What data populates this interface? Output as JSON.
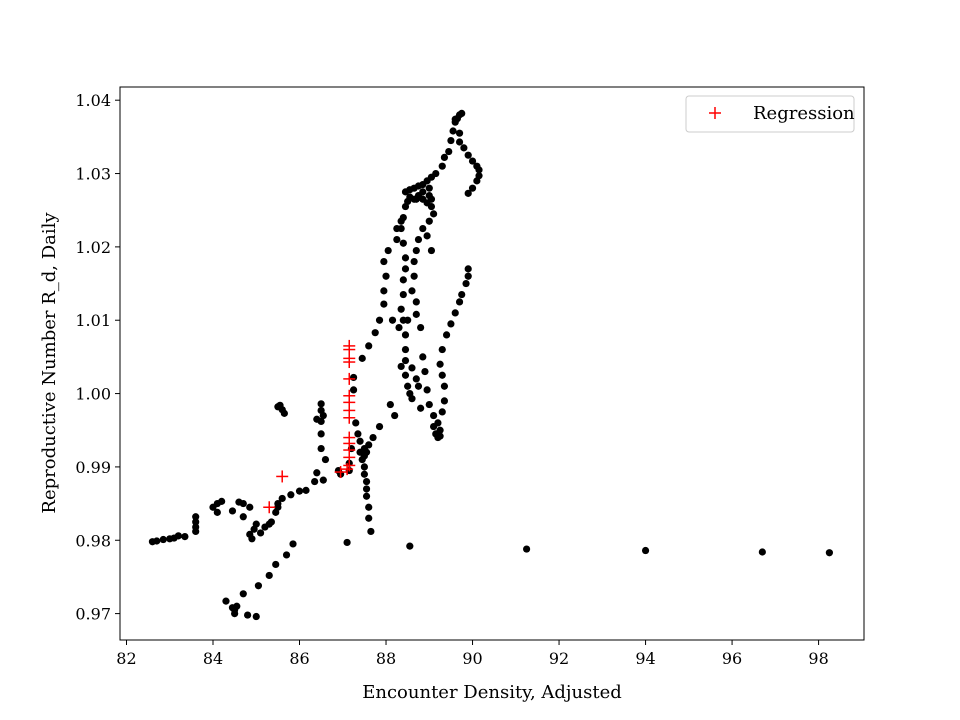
{
  "chart_data": {
    "type": "scatter",
    "title": "",
    "xlabel": "Encounter Density, Adjusted",
    "ylabel": "Reproductive Number R_d, Daily",
    "xlim": [
      81.85,
      99.05
    ],
    "ylim": [
      0.9664,
      1.0418
    ],
    "xticks": [
      82,
      84,
      86,
      88,
      90,
      92,
      94,
      96,
      98
    ],
    "yticks": [
      0.97,
      0.98,
      0.99,
      1.0,
      1.01,
      1.02,
      1.03,
      1.04
    ],
    "ytick_labels": [
      "0.97",
      "0.98",
      "0.99",
      "1.00",
      "1.01",
      "1.02",
      "1.03",
      "1.04"
    ],
    "grid": false,
    "legend": {
      "placement": "top-right",
      "entries": [
        "Regression"
      ]
    },
    "colors": {
      "observed": "#000000",
      "regression": "#ff0000"
    },
    "series": [
      {
        "marker": "dot",
        "points": [
          [
            82.6,
            0.9798
          ],
          [
            82.7,
            0.9799
          ],
          [
            82.85,
            0.9801
          ],
          [
            83.0,
            0.9802
          ],
          [
            83.1,
            0.9803
          ],
          [
            83.2,
            0.9806
          ],
          [
            83.35,
            0.9805
          ],
          [
            83.6,
            0.9812
          ],
          [
            83.6,
            0.9818
          ],
          [
            83.6,
            0.9825
          ],
          [
            83.6,
            0.9832
          ],
          [
            84.0,
            0.9845
          ],
          [
            84.1,
            0.985
          ],
          [
            84.2,
            0.9853
          ],
          [
            84.1,
            0.9838
          ],
          [
            84.45,
            0.984
          ],
          [
            84.6,
            0.9852
          ],
          [
            84.7,
            0.985
          ],
          [
            84.7,
            0.9832
          ],
          [
            84.85,
            0.9845
          ],
          [
            84.85,
            0.9808
          ],
          [
            84.9,
            0.9802
          ],
          [
            84.95,
            0.9815
          ],
          [
            85.0,
            0.9822
          ],
          [
            85.1,
            0.981
          ],
          [
            85.2,
            0.9818
          ],
          [
            85.3,
            0.9822
          ],
          [
            85.35,
            0.9825
          ],
          [
            85.45,
            0.9838
          ],
          [
            85.5,
            0.9845
          ],
          [
            85.5,
            0.985
          ],
          [
            85.6,
            0.9857
          ],
          [
            85.8,
            0.9862
          ],
          [
            86.0,
            0.9867
          ],
          [
            86.15,
            0.9868
          ],
          [
            86.35,
            0.988
          ],
          [
            86.55,
            0.9882
          ],
          [
            86.4,
            0.9892
          ],
          [
            86.6,
            0.991
          ],
          [
            86.5,
            0.9925
          ],
          [
            86.5,
            0.9945
          ],
          [
            86.5,
            0.9962
          ],
          [
            86.55,
            0.997
          ],
          [
            86.5,
            0.9977
          ],
          [
            86.5,
            0.9986
          ],
          [
            86.4,
            0.9965
          ],
          [
            86.9,
            0.9895
          ],
          [
            86.95,
            0.989
          ],
          [
            85.5,
            0.9982
          ],
          [
            85.55,
            0.9984
          ],
          [
            85.6,
            0.9978
          ],
          [
            85.65,
            0.9973
          ],
          [
            84.3,
            0.9717
          ],
          [
            84.45,
            0.9708
          ],
          [
            84.5,
            0.97
          ],
          [
            84.5,
            0.9705
          ],
          [
            84.55,
            0.971
          ],
          [
            84.7,
            0.9727
          ],
          [
            84.8,
            0.9698
          ],
          [
            85.0,
            0.9696
          ],
          [
            85.05,
            0.9738
          ],
          [
            85.3,
            0.9752
          ],
          [
            85.45,
            0.9767
          ],
          [
            85.7,
            0.978
          ],
          [
            85.85,
            0.9795
          ],
          [
            87.1,
            0.9797
          ],
          [
            88.55,
            0.9792
          ],
          [
            91.25,
            0.9788
          ],
          [
            94.0,
            0.9786
          ],
          [
            96.7,
            0.9784
          ],
          [
            98.25,
            0.9783
          ],
          [
            87.15,
            0.9895
          ],
          [
            87.15,
            0.9905
          ],
          [
            87.2,
            0.9925
          ],
          [
            87.3,
            0.996
          ],
          [
            87.25,
            1.0005
          ],
          [
            87.25,
            1.0022
          ],
          [
            87.45,
            1.0048
          ],
          [
            87.6,
            1.0065
          ],
          [
            87.75,
            1.0083
          ],
          [
            87.85,
            1.01
          ],
          [
            87.95,
            1.0122
          ],
          [
            87.95,
            1.014
          ],
          [
            88.0,
            1.016
          ],
          [
            87.95,
            1.018
          ],
          [
            88.05,
            1.0195
          ],
          [
            88.25,
            1.021
          ],
          [
            88.25,
            1.0225
          ],
          [
            88.35,
            1.0235
          ],
          [
            88.4,
            1.024
          ],
          [
            88.45,
            1.0255
          ],
          [
            88.5,
            1.0262
          ],
          [
            88.55,
            1.0268
          ],
          [
            88.65,
            1.0265
          ],
          [
            88.75,
            1.027
          ],
          [
            88.85,
            1.0265
          ],
          [
            88.95,
            1.026
          ],
          [
            89.0,
            1.027
          ],
          [
            88.45,
            1.0275
          ],
          [
            88.55,
            1.0278
          ],
          [
            88.65,
            1.028
          ],
          [
            88.75,
            1.0283
          ],
          [
            88.85,
            1.0285
          ],
          [
            88.95,
            1.029
          ],
          [
            89.05,
            1.0295
          ],
          [
            89.15,
            1.03
          ],
          [
            89.3,
            1.031
          ],
          [
            89.35,
            1.0322
          ],
          [
            89.45,
            1.033
          ],
          [
            89.5,
            1.0345
          ],
          [
            89.55,
            1.0358
          ],
          [
            89.6,
            1.037
          ],
          [
            89.65,
            1.0375
          ],
          [
            89.7,
            1.038
          ],
          [
            89.75,
            1.0382
          ],
          [
            89.6,
            1.0374
          ],
          [
            89.7,
            1.0355
          ],
          [
            89.7,
            1.0343
          ],
          [
            89.8,
            1.0335
          ],
          [
            89.9,
            1.0325
          ],
          [
            90.0,
            1.0317
          ],
          [
            90.1,
            1.031
          ],
          [
            90.15,
            1.0305
          ],
          [
            90.15,
            1.0297
          ],
          [
            90.1,
            1.029
          ],
          [
            90.0,
            1.028
          ],
          [
            89.9,
            1.0273
          ],
          [
            88.35,
            1.0225
          ],
          [
            88.4,
            1.0205
          ],
          [
            88.45,
            1.0185
          ],
          [
            88.45,
            1.017
          ],
          [
            88.4,
            1.0155
          ],
          [
            88.4,
            1.0135
          ],
          [
            88.35,
            1.0115
          ],
          [
            88.4,
            1.01
          ],
          [
            88.45,
            1.008
          ],
          [
            88.45,
            1.006
          ],
          [
            88.45,
            1.0045
          ],
          [
            88.45,
            1.0025
          ],
          [
            88.5,
            1.001
          ],
          [
            88.55,
            1.0
          ],
          [
            88.6,
            0.9993
          ],
          [
            88.35,
            1.0037
          ],
          [
            88.6,
            1.0035
          ],
          [
            88.7,
            1.002
          ],
          [
            88.75,
            1.001
          ],
          [
            88.8,
            0.998
          ],
          [
            88.6,
            1.014
          ],
          [
            88.65,
            1.016
          ],
          [
            88.65,
            1.018
          ],
          [
            88.7,
            1.0195
          ],
          [
            88.75,
            1.021
          ],
          [
            88.85,
            1.0225
          ],
          [
            89.0,
            1.0235
          ],
          [
            88.95,
            1.0215
          ],
          [
            89.05,
            1.0195
          ],
          [
            89.1,
            1.0245
          ],
          [
            89.05,
            1.0255
          ],
          [
            89.05,
            1.0265
          ],
          [
            89.0,
            1.028
          ],
          [
            88.85,
            1.0275
          ],
          [
            88.7,
            1.0265
          ],
          [
            88.15,
            1.01
          ],
          [
            88.3,
            1.009
          ],
          [
            88.5,
            1.01
          ],
          [
            88.7,
            1.0125
          ],
          [
            88.7,
            1.0108
          ],
          [
            88.8,
            1.009
          ],
          [
            88.85,
            1.005
          ],
          [
            88.9,
            1.003
          ],
          [
            88.95,
            1.0005
          ],
          [
            89.0,
            0.9985
          ],
          [
            89.1,
            0.997
          ],
          [
            89.1,
            0.9955
          ],
          [
            89.15,
            0.9945
          ],
          [
            89.2,
            0.994
          ],
          [
            89.25,
            0.9942
          ],
          [
            89.25,
            0.995
          ],
          [
            89.2,
            0.996
          ],
          [
            89.3,
            0.9975
          ],
          [
            89.35,
            0.999
          ],
          [
            89.35,
            1.001
          ],
          [
            89.3,
            1.0025
          ],
          [
            89.25,
            1.004
          ],
          [
            89.3,
            1.006
          ],
          [
            89.4,
            1.008
          ],
          [
            89.5,
            1.0095
          ],
          [
            89.6,
            1.011
          ],
          [
            89.7,
            1.0125
          ],
          [
            89.75,
            1.0135
          ],
          [
            89.85,
            1.015
          ],
          [
            89.9,
            1.016
          ],
          [
            89.9,
            1.017
          ],
          [
            88.1,
            0.9985
          ],
          [
            88.2,
            0.997
          ],
          [
            87.85,
            0.9955
          ],
          [
            87.7,
            0.994
          ],
          [
            87.6,
            0.993
          ],
          [
            87.55,
            0.992
          ],
          [
            87.5,
            0.9915
          ],
          [
            87.45,
            0.991
          ],
          [
            87.4,
            0.992
          ],
          [
            87.5,
            0.99
          ],
          [
            87.55,
            0.988
          ],
          [
            87.55,
            0.986
          ],
          [
            87.6,
            0.9845
          ],
          [
            87.6,
            0.983
          ],
          [
            87.65,
            0.9812
          ],
          [
            87.5,
            0.9925
          ],
          [
            87.4,
            0.9935
          ],
          [
            87.35,
            0.9945
          ],
          [
            87.55,
            0.987
          ],
          [
            87.5,
            0.989
          ]
        ]
      },
      {
        "name": "Regression",
        "marker": "plus",
        "points": [
          [
            85.3,
            0.9845
          ],
          [
            85.6,
            0.9887
          ],
          [
            86.95,
            0.9893
          ],
          [
            87.1,
            0.9897
          ],
          [
            87.15,
            0.9902
          ],
          [
            87.15,
            0.9913
          ],
          [
            87.15,
            0.9923
          ],
          [
            87.15,
            0.9932
          ],
          [
            87.15,
            0.994
          ],
          [
            87.15,
            0.9967
          ],
          [
            87.15,
            0.9977
          ],
          [
            87.15,
            0.9988
          ],
          [
            87.15,
            0.9997
          ],
          [
            87.15,
            1.002
          ],
          [
            87.15,
            1.0043
          ],
          [
            87.15,
            1.0048
          ],
          [
            87.15,
            1.006
          ],
          [
            87.15,
            1.0065
          ]
        ]
      }
    ]
  }
}
